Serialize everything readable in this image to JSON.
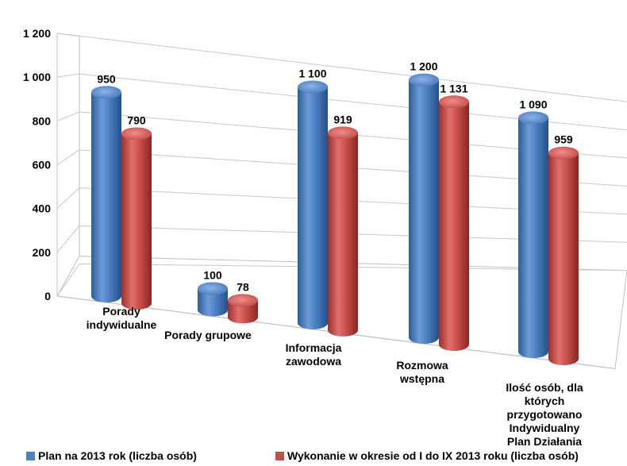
{
  "chart_data": {
    "type": "bar",
    "categories": [
      [
        "Porady",
        "indywidualne"
      ],
      [
        "Porady grupowe"
      ],
      [
        "Informacja",
        "zawodowa"
      ],
      [
        "Rozmowa",
        "wstępna"
      ],
      [
        "Ilość osób, dla",
        "których",
        "przygotowano",
        "Indywidualny",
        "Plan Działania"
      ]
    ],
    "series": [
      {
        "name": "Plan na 2013 rok (liczba osób)",
        "values": [
          950,
          100,
          1100,
          1200,
          1090
        ],
        "labels": [
          "950",
          "100",
          "1 100",
          "1 200",
          "1 090"
        ],
        "color": "#4F81BD"
      },
      {
        "name": "Wykonanie w okresie od I do IX 2013 roku (liczba osób)",
        "values": [
          790,
          78,
          919,
          1131,
          959
        ],
        "labels": [
          "790",
          "78",
          "919",
          "1 131",
          "959"
        ],
        "color": "#C0504D"
      }
    ],
    "ylim": [
      0,
      1200
    ],
    "yticks": [
      "0",
      "200",
      "400",
      "600",
      "800",
      "1 000",
      "1 200"
    ],
    "grid": true,
    "legend": "bottom",
    "style": "3d-cylinder"
  }
}
